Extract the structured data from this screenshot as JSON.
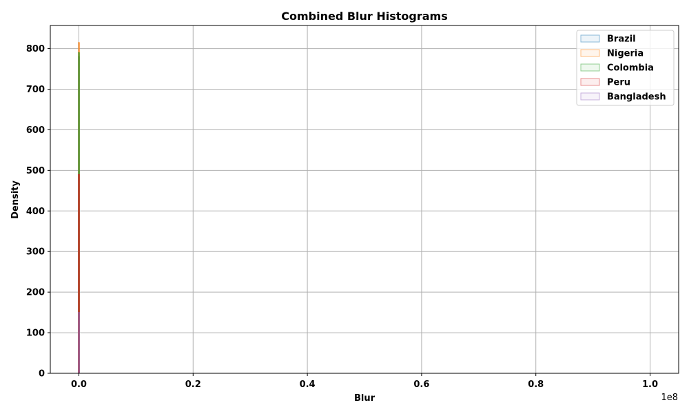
{
  "chart_data": {
    "type": "histogram",
    "title": "Combined Blur Histograms",
    "xlabel": "Blur",
    "ylabel": "Density",
    "x_scale_label": "1e8",
    "xlim": [
      -5000000,
      105000000
    ],
    "ylim": [
      0,
      857
    ],
    "x_ticks": [
      0,
      20000000,
      40000000,
      60000000,
      80000000,
      100000000
    ],
    "x_tick_labels": [
      "0.0",
      "0.2",
      "0.4",
      "0.6",
      "0.8",
      "1.0"
    ],
    "y_ticks": [
      0,
      100,
      200,
      300,
      400,
      500,
      600,
      700,
      800
    ],
    "y_tick_labels": [
      "0",
      "100",
      "200",
      "300",
      "400",
      "500",
      "600",
      "700",
      "800"
    ],
    "grid": true,
    "legend_position": "top-right",
    "series": [
      {
        "name": "Brazil",
        "color": "#1f77b4",
        "peak_x": 0,
        "peak_density": 780,
        "fill_opacity": 0.35
      },
      {
        "name": "Nigeria",
        "color": "#ff7f0e",
        "peak_x": 0,
        "peak_density": 815,
        "fill_opacity": 0.4
      },
      {
        "name": "Colombia",
        "color": "#2ca02c",
        "peak_x": 0,
        "peak_density": 790,
        "fill_opacity": 0.35
      },
      {
        "name": "Peru",
        "color": "#d62728",
        "peak_x": 0,
        "peak_density": 490,
        "fill_opacity": 0.6
      },
      {
        "name": "Bangladesh",
        "color": "#9467bd",
        "peak_x": 0,
        "peak_density": 150,
        "fill_opacity": 0.35
      }
    ]
  }
}
